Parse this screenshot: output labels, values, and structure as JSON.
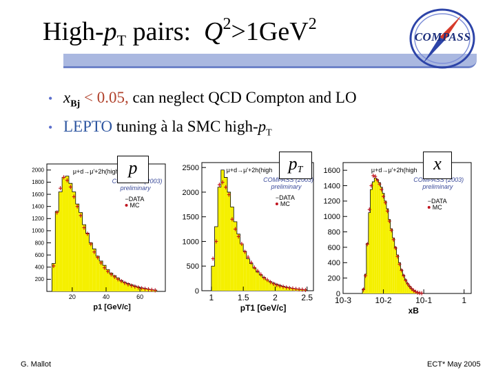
{
  "title": {
    "prefix": "High-",
    "p": "p",
    "p_sub": "T",
    "middle": " pairs:  ",
    "q": "Q",
    "q_sup": "2",
    "rel": ">1GeV",
    "gev_sup": "2"
  },
  "logo": {
    "text": "COMPASS"
  },
  "bullets": [
    {
      "x": "x",
      "x_sub": "Bj",
      "red_part": " < 0.05,",
      "rest": " can neglect QCD Compton and LO"
    },
    {
      "blue_part": "LEPTO",
      "rest": " tuning à la SMC high-",
      "p": "p",
      "p_sub": "T"
    }
  ],
  "label_boxes": [
    {
      "text": "p",
      "sub": ""
    },
    {
      "text": "p",
      "sub": "T"
    },
    {
      "text": "x",
      "sub": ""
    }
  ],
  "footer": {
    "left": "G. Mallot",
    "right": "ECT* May 2005"
  },
  "chart_data": [
    {
      "type": "bar",
      "title": "",
      "reaction": "μ+d→μ'+2h(high",
      "collab": "COMPASS (2003)",
      "status": "preliminary",
      "legend": [
        "DATA",
        "MC"
      ],
      "xlabel": "p1 [GeV/c]",
      "xlim": [
        5,
        75
      ],
      "ylim": [
        0,
        2100
      ],
      "xticks": [
        "20",
        "40",
        "60"
      ],
      "xtick_values": [
        20,
        40,
        60
      ],
      "yticks": [
        "200",
        "400",
        "600",
        "800",
        "1000",
        "1200",
        "1400",
        "1600",
        "1800",
        "2000"
      ],
      "ytick_values": [
        200,
        400,
        600,
        800,
        1000,
        1200,
        1400,
        1600,
        1800,
        2000
      ],
      "x": [
        9,
        11,
        13,
        15,
        17,
        19,
        21,
        23,
        25,
        27,
        29,
        31,
        33,
        35,
        37,
        39,
        41,
        43,
        45,
        47,
        49,
        51,
        53,
        55,
        57,
        59,
        61,
        63,
        65,
        67,
        69
      ],
      "mc": [
        460,
        1320,
        1640,
        1880,
        1900,
        1780,
        1640,
        1440,
        1300,
        1100,
        960,
        800,
        700,
        580,
        500,
        430,
        360,
        300,
        260,
        220,
        180,
        150,
        130,
        110,
        90,
        75,
        60,
        50,
        40,
        30,
        22
      ],
      "data": [
        420,
        1300,
        1700,
        1880,
        1830,
        1720,
        1560,
        1400,
        1250,
        1050,
        950,
        780,
        650,
        560,
        470,
        390,
        330,
        280,
        240,
        200,
        170,
        140,
        115,
        95,
        80,
        65,
        52,
        42,
        35,
        26,
        18
      ]
    },
    {
      "type": "bar",
      "title": "",
      "reaction": "μ+d→μ'+2h(high",
      "collab": "COMPASS (2003)",
      "status": "preliminary",
      "legend": [
        "DATA",
        "MC"
      ],
      "xlabel": "pT1 [GeV/c]",
      "xlim": [
        0.85,
        2.6
      ],
      "ylim": [
        0,
        2600
      ],
      "xticks": [
        "1",
        "1.5",
        "2",
        "2.5"
      ],
      "xtick_values": [
        1,
        1.5,
        2,
        2.5
      ],
      "yticks": [
        "0",
        "500",
        "1000",
        "1500",
        "2000",
        "2500"
      ],
      "ytick_values": [
        0,
        500,
        1000,
        1500,
        2000,
        2500
      ],
      "x": [
        1.025,
        1.075,
        1.125,
        1.175,
        1.225,
        1.275,
        1.325,
        1.375,
        1.425,
        1.475,
        1.525,
        1.575,
        1.625,
        1.675,
        1.725,
        1.775,
        1.825,
        1.875,
        1.925,
        1.975,
        2.025,
        2.075,
        2.125,
        2.175,
        2.225,
        2.275,
        2.325,
        2.375,
        2.425,
        2.475
      ],
      "mc": [
        500,
        1300,
        2100,
        2450,
        2300,
        2000,
        1700,
        1400,
        1150,
        950,
        800,
        650,
        550,
        460,
        380,
        320,
        270,
        220,
        185,
        155,
        130,
        110,
        90,
        75,
        62,
        50,
        40,
        32,
        25,
        20
      ],
      "data": [
        650,
        1000,
        2150,
        2200,
        2100,
        1950,
        1450,
        1250,
        1100,
        950,
        790,
        680,
        570,
        470,
        400,
        330,
        260,
        220,
        175,
        140,
        115,
        95,
        80,
        65,
        55,
        45,
        35,
        28,
        22,
        16
      ]
    },
    {
      "type": "bar",
      "title": "",
      "reaction": "μ+d→μ'+2h(high",
      "collab": "COMPASS (2003)",
      "status": "preliminary",
      "legend": [
        "DATA",
        "MC"
      ],
      "xlabel": "xB",
      "xscale": "log",
      "xlim": [
        0.001,
        1.5
      ],
      "ylim": [
        0,
        1700
      ],
      "xticks": [
        "10-3",
        "10-2",
        "10-1",
        "1"
      ],
      "xtick_values": [
        0.001,
        0.01,
        0.1,
        1
      ],
      "yticks": [
        "0",
        "200",
        "400",
        "600",
        "800",
        "1000",
        "1200",
        "1400",
        "1600"
      ],
      "ytick_values": [
        0,
        200,
        400,
        600,
        800,
        1000,
        1200,
        1400,
        1600
      ],
      "x": [
        0.0032,
        0.0036,
        0.004,
        0.0045,
        0.005,
        0.0056,
        0.0063,
        0.0071,
        0.008,
        0.009,
        0.01,
        0.0112,
        0.0126,
        0.0141,
        0.0158,
        0.0178,
        0.02,
        0.0224,
        0.0251,
        0.0282,
        0.0316,
        0.0355,
        0.0398,
        0.0447,
        0.0501,
        0.0562,
        0.0631,
        0.0708,
        0.0794,
        0.0891
      ],
      "mc": [
        60,
        250,
        650,
        1050,
        1350,
        1450,
        1500,
        1480,
        1440,
        1380,
        1300,
        1200,
        1100,
        960,
        840,
        720,
        600,
        500,
        400,
        310,
        240,
        180,
        130,
        95,
        65,
        42,
        26,
        15,
        8,
        4
      ],
      "data": [
        50,
        230,
        640,
        1090,
        1400,
        1530,
        1520,
        1470,
        1420,
        1350,
        1260,
        1180,
        1070,
        940,
        820,
        700,
        590,
        480,
        380,
        300,
        230,
        170,
        125,
        90,
        60,
        38,
        22,
        12,
        6,
        3
      ]
    }
  ]
}
